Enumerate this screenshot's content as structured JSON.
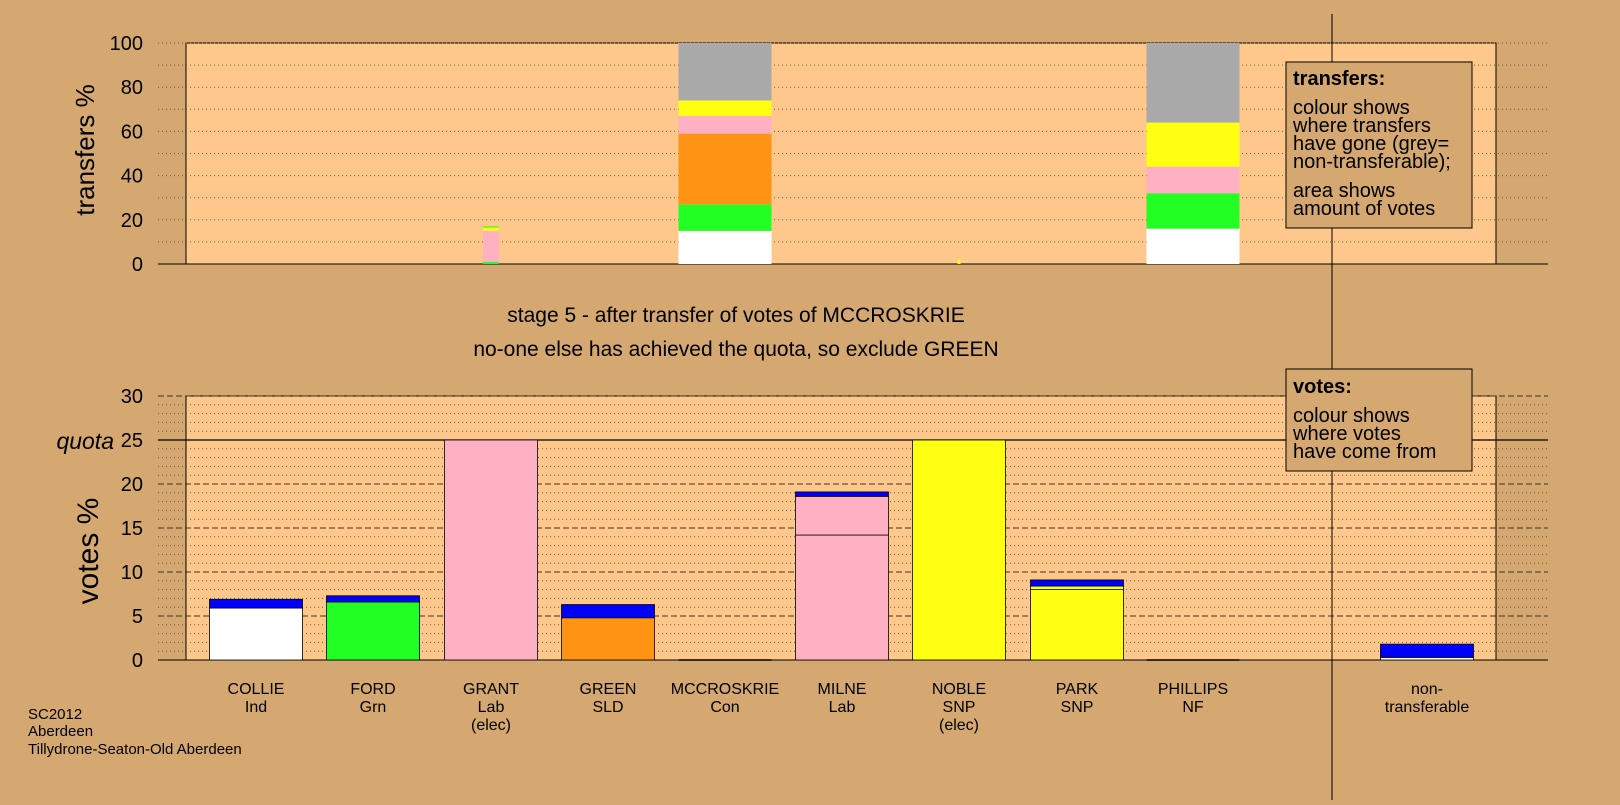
{
  "colors": {
    "background": "#d4a870",
    "plot_bg": "#fec88c",
    "non_transferable": "#a9a9a9",
    "white": "#ffffff",
    "green": "#22ff22",
    "pink": "#ffb0c2",
    "orange": "#ff9414",
    "yellow": "#ffff11",
    "blue": "#0000ff"
  },
  "stage_title": "stage 5 - after transfer of votes of MCCROSKRIE",
  "stage_subtitle": "no-one else has achieved the quota, so exclude GREEN",
  "footer": [
    "SC2012",
    "Aberdeen",
    "Tillydrone-Seaton-Old Aberdeen"
  ],
  "legend_transfers": {
    "title": "transfers:",
    "lines": [
      "colour shows",
      "where transfers",
      "have gone (grey=",
      "non-transferable);",
      "area shows",
      "amount of votes"
    ]
  },
  "legend_votes": {
    "title": "votes:",
    "lines": [
      "colour shows",
      "where votes",
      "have come from"
    ]
  },
  "candidates": [
    {
      "label": [
        "COLLIE",
        "Ind"
      ]
    },
    {
      "label": [
        "FORD",
        "Grn"
      ]
    },
    {
      "label": [
        "GRANT",
        "Lab",
        "(elec)"
      ]
    },
    {
      "label": [
        "GREEN",
        "SLD"
      ]
    },
    {
      "label": [
        "MCCROSKRIE",
        "Con"
      ]
    },
    {
      "label": [
        "MILNE",
        "Lab"
      ]
    },
    {
      "label": [
        "NOBLE",
        "SNP",
        "(elec)"
      ]
    },
    {
      "label": [
        "PARK",
        "SNP"
      ]
    },
    {
      "label": [
        "PHILLIPS",
        "NF"
      ]
    },
    {
      "label": [
        "non-",
        "transferable"
      ]
    }
  ],
  "chart_data": [
    {
      "type": "bar",
      "ylabel": "transfers %",
      "ylim": [
        0,
        100
      ],
      "yticks": [
        0,
        20,
        40,
        60,
        80,
        100
      ],
      "bars": [
        {
          "candidate": "GRANT",
          "width_pct": 17,
          "segments": [
            {
              "color": "green",
              "from": 0,
              "to": 1
            },
            {
              "color": "pink",
              "from": 1,
              "to": 15
            },
            {
              "color": "yellow",
              "from": 15,
              "to": 16.5
            },
            {
              "color": "green",
              "from": 16.5,
              "to": 17
            }
          ]
        },
        {
          "candidate": "MCCROSKRIE",
          "width_pct": 100,
          "segments": [
            {
              "color": "white",
              "from": 0,
              "to": 15
            },
            {
              "color": "green",
              "from": 15,
              "to": 27
            },
            {
              "color": "orange",
              "from": 27,
              "to": 59
            },
            {
              "color": "pink",
              "from": 59,
              "to": 67
            },
            {
              "color": "yellow",
              "from": 67,
              "to": 74
            },
            {
              "color": "non_transferable",
              "from": 74,
              "to": 100
            }
          ]
        },
        {
          "candidate": "NOBLE",
          "width_pct": 2,
          "segments": [
            {
              "color": "yellow",
              "from": 0,
              "to": 2
            }
          ]
        },
        {
          "candidate": "PHILLIPS",
          "width_pct": 100,
          "segments": [
            {
              "color": "white",
              "from": 0,
              "to": 16
            },
            {
              "color": "green",
              "from": 16,
              "to": 32
            },
            {
              "color": "pink",
              "from": 32,
              "to": 44
            },
            {
              "color": "yellow",
              "from": 44,
              "to": 64
            },
            {
              "color": "non_transferable",
              "from": 64,
              "to": 100
            }
          ]
        }
      ]
    },
    {
      "type": "bar",
      "ylabel": "votes %",
      "ylim": [
        0,
        30
      ],
      "yticks": [
        0,
        5,
        10,
        15,
        20,
        25,
        30
      ],
      "quota": 25,
      "quota_label": "quota",
      "bars": [
        {
          "candidate": "COLLIE",
          "segments": [
            {
              "color": "white",
              "from": 0,
              "to": 5.9
            },
            {
              "color": "blue",
              "from": 5.9,
              "to": 6.9
            }
          ]
        },
        {
          "candidate": "FORD",
          "segments": [
            {
              "color": "green",
              "from": 0,
              "to": 6.6
            },
            {
              "color": "blue",
              "from": 6.6,
              "to": 7.3
            }
          ]
        },
        {
          "candidate": "GRANT",
          "segments": [
            {
              "color": "pink",
              "from": 0,
              "to": 25
            }
          ]
        },
        {
          "candidate": "GREEN",
          "segments": [
            {
              "color": "orange",
              "from": 0,
              "to": 4.8
            },
            {
              "color": "blue",
              "from": 4.8,
              "to": 6.3
            }
          ]
        },
        {
          "candidate": "MCCROSKRIE",
          "segments": []
        },
        {
          "candidate": "MILNE",
          "segments": [
            {
              "color": "pink",
              "from": 0,
              "to": 14.2
            },
            {
              "color": "pink",
              "from": 14.2,
              "to": 18.6
            },
            {
              "color": "blue",
              "from": 18.6,
              "to": 19.1
            }
          ]
        },
        {
          "candidate": "NOBLE",
          "segments": [
            {
              "color": "yellow",
              "from": 0,
              "to": 25
            }
          ]
        },
        {
          "candidate": "PARK",
          "segments": [
            {
              "color": "yellow",
              "from": 0,
              "to": 8.0
            },
            {
              "color": "yellow",
              "from": 8.0,
              "to": 8.4
            },
            {
              "color": "blue",
              "from": 8.4,
              "to": 9.1
            }
          ]
        },
        {
          "candidate": "PHILLIPS",
          "segments": []
        },
        {
          "candidate": "non-transferable",
          "segments": [
            {
              "color": "white",
              "from": 0,
              "to": 0.3
            },
            {
              "color": "blue",
              "from": 0.3,
              "to": 1.8
            }
          ]
        }
      ]
    }
  ]
}
